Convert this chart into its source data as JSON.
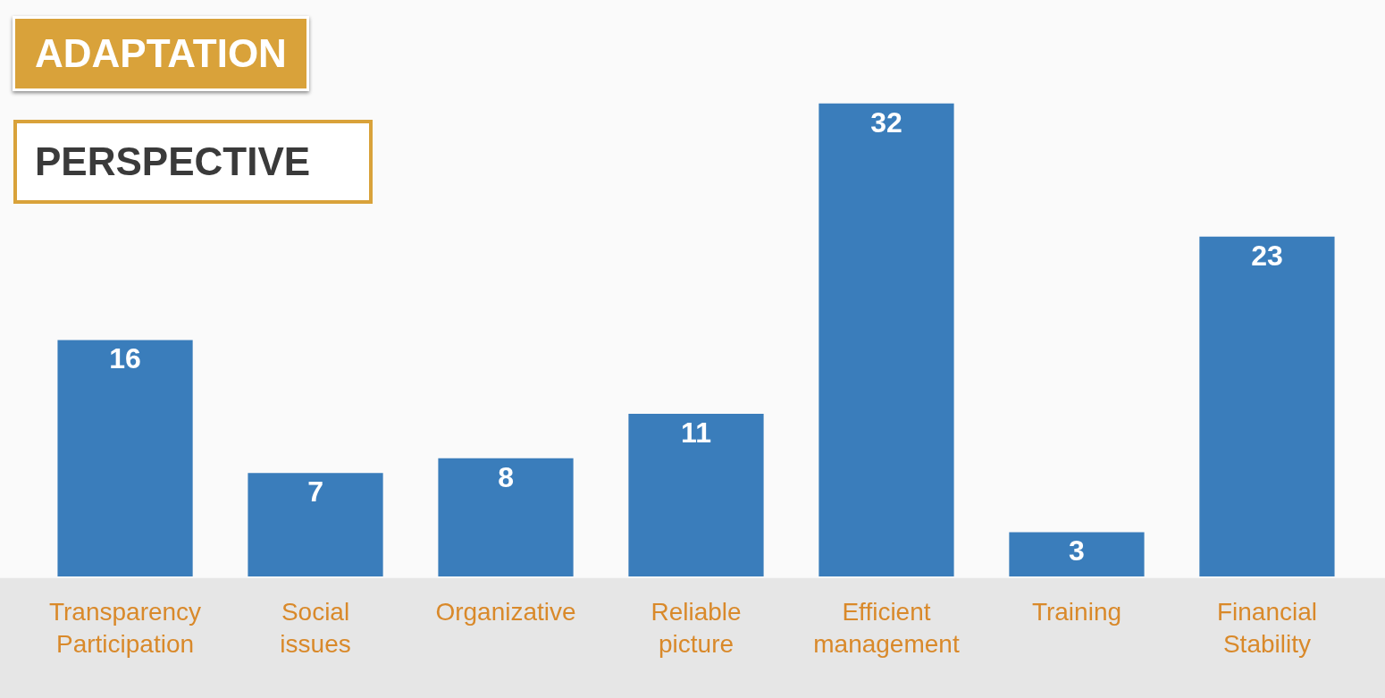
{
  "chart_data": {
    "type": "bar",
    "title": "ADAPTATION",
    "subtitle": "PERSPECTIVE",
    "categories": [
      "Transparency Participation",
      "Social issues",
      "Organizative",
      "Reliable picture",
      "Efficient management",
      "Training",
      "Financial Stability"
    ],
    "values": [
      16,
      7,
      8,
      11,
      32,
      3,
      23
    ],
    "color": "#3a7dbb",
    "data_labels": true,
    "grid": false,
    "legend": false
  }
}
